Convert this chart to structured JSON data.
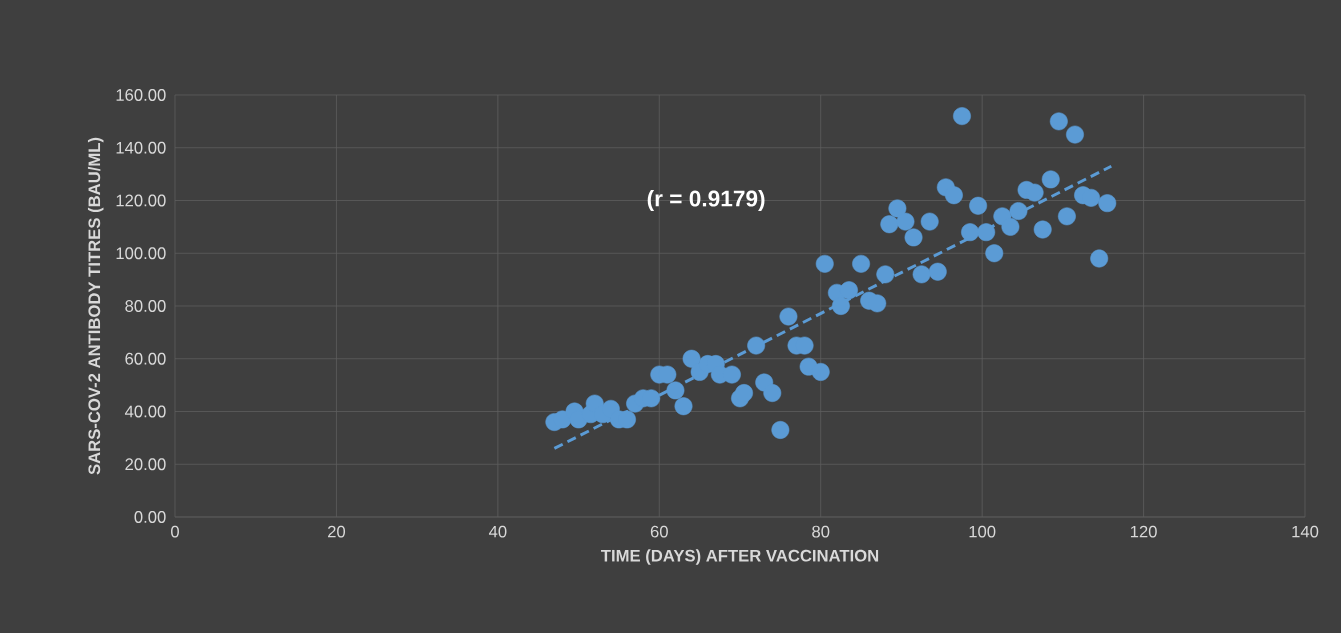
{
  "chart_data": {
    "type": "scatter",
    "xlabel": "TIME (DAYS) AFTER VACCINATION",
    "ylabel": "SARS-COV-2 ANTIBODY TITRES (BAU/ML)",
    "annotations": [
      "(r = 0.9179)"
    ],
    "xlim": [
      0,
      140
    ],
    "ylim": [
      0,
      160
    ],
    "xticks": [
      0,
      20,
      40,
      60,
      80,
      100,
      120,
      140
    ],
    "yticks": [
      {
        "value": 0,
        "label": "0.00"
      },
      {
        "value": 20,
        "label": "20.00"
      },
      {
        "value": 40,
        "label": "40.00"
      },
      {
        "value": 60,
        "label": "60.00"
      },
      {
        "value": 80,
        "label": "80.00"
      },
      {
        "value": 100,
        "label": "100.00"
      },
      {
        "value": 120,
        "label": "120.00"
      },
      {
        "value": 140,
        "label": "140.00"
      },
      {
        "value": 160,
        "label": "160.00"
      }
    ],
    "grid": true,
    "series": [
      {
        "type": "scatter",
        "color": "#5b9bd5",
        "marker": "circle",
        "x": [
          47,
          48,
          49.5,
          50,
          51.5,
          52,
          53,
          54,
          55,
          56,
          57,
          58,
          59,
          60,
          61,
          62,
          63,
          64,
          65,
          66,
          67,
          67.5,
          69,
          70,
          70.5,
          72,
          73,
          74,
          75,
          76,
          77,
          78,
          78.5,
          80,
          80.5,
          82,
          82.5,
          83.5,
          85,
          86,
          87,
          88,
          88.5,
          89.5,
          90.5,
          91.5,
          92.5,
          93.5,
          94.5,
          95.5,
          96.5,
          97.5,
          98.5,
          99.5,
          100.5,
          101.5,
          102.5,
          103.5,
          104.5,
          105.5,
          106.5,
          107.5,
          108.5,
          109.5,
          110.5,
          111.5,
          112.5,
          113.5,
          114.5,
          115.5
        ],
        "values": [
          36,
          37,
          40,
          37,
          39,
          43,
          39,
          41,
          37,
          37,
          43,
          45,
          45,
          54,
          54,
          48,
          42,
          60,
          55,
          58,
          58,
          54,
          54,
          45,
          47,
          65,
          51,
          47,
          33,
          76,
          65,
          65,
          57,
          55,
          96,
          85,
          80,
          86,
          96,
          82,
          81,
          92,
          111,
          117,
          112,
          106,
          92,
          112,
          93,
          125,
          122,
          152,
          108,
          118,
          108,
          100,
          114,
          110,
          116,
          124,
          123,
          109,
          128,
          150,
          114,
          145,
          122,
          121,
          98,
          119
        ]
      },
      {
        "type": "line",
        "color": "#5b9bd5",
        "line_style": "dashed",
        "marker": "none",
        "x": [
          47,
          116
        ],
        "values": [
          26,
          133
        ]
      }
    ]
  }
}
